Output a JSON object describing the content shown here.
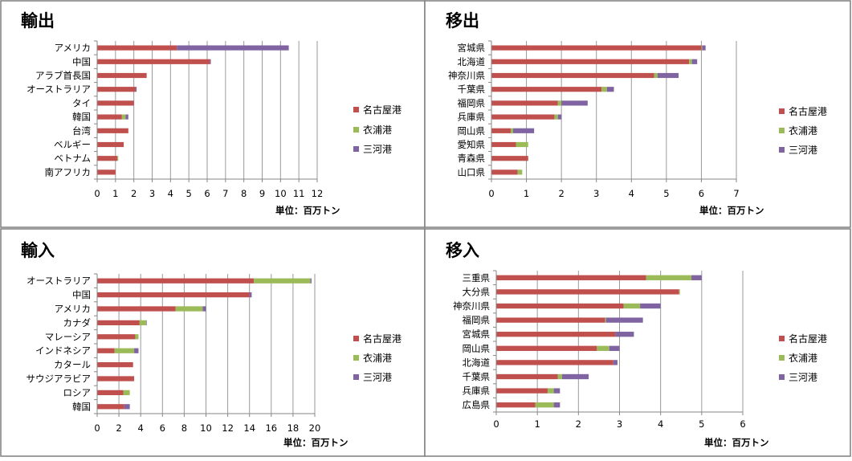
{
  "colors": {
    "nagoya": "#c0504d",
    "kinuura": "#9bbb59",
    "mikawa": "#8064a2"
  },
  "chart_data": [
    {
      "type": "bar",
      "stacked": true,
      "orientation": "horizontal",
      "title": "輸出",
      "unit_label": "単位：百万トン",
      "xlim": [
        0,
        12
      ],
      "xticks": [
        0,
        1,
        2,
        3,
        4,
        5,
        6,
        7,
        8,
        9,
        10,
        11,
        12
      ],
      "categories": [
        "アメリカ",
        "中国",
        "アラブ首長国",
        "オーストラリア",
        "タイ",
        "韓国",
        "台湾",
        "ベルギー",
        "ベトナム",
        "南アフリカ"
      ],
      "series": [
        {
          "name": "名古屋港",
          "values": [
            4.35,
            6.15,
            2.7,
            2.1,
            2.0,
            1.35,
            1.7,
            1.45,
            1.1,
            1.0
          ]
        },
        {
          "name": "衣浦港",
          "values": [
            0,
            0,
            0,
            0,
            0,
            0.2,
            0,
            0,
            0.05,
            0
          ]
        },
        {
          "name": "三河港",
          "values": [
            6.1,
            0.05,
            0,
            0.05,
            0,
            0.15,
            0,
            0,
            0,
            0
          ]
        }
      ]
    },
    {
      "type": "bar",
      "stacked": true,
      "orientation": "horizontal",
      "title": "移出",
      "unit_label": "単位：百万トン",
      "xlim": [
        0,
        7
      ],
      "xticks": [
        0,
        1,
        2,
        3,
        4,
        5,
        6,
        7
      ],
      "categories": [
        "宮城県",
        "北海道",
        "神奈川県",
        "千葉県",
        "福岡県",
        "兵庫県",
        "岡山県",
        "愛知県",
        "青森県",
        "山口県"
      ],
      "series": [
        {
          "name": "名古屋港",
          "values": [
            6.0,
            5.65,
            4.65,
            3.15,
            1.9,
            1.8,
            0.55,
            0.7,
            1.05,
            0.75
          ]
        },
        {
          "name": "衣浦港",
          "values": [
            0.02,
            0.08,
            0.1,
            0.15,
            0.1,
            0.1,
            0.07,
            0.35,
            0,
            0.13
          ]
        },
        {
          "name": "三河港",
          "values": [
            0.1,
            0.15,
            0.6,
            0.2,
            0.75,
            0.1,
            0.6,
            0,
            0,
            0
          ]
        }
      ]
    },
    {
      "type": "bar",
      "stacked": true,
      "orientation": "horizontal",
      "title": "輸入",
      "unit_label": "単位：百万トン",
      "xlim": [
        0,
        20
      ],
      "xticks": [
        0,
        2,
        4,
        6,
        8,
        10,
        12,
        14,
        16,
        18,
        20
      ],
      "categories": [
        "オーストラリア",
        "中国",
        "アメリカ",
        "カナダ",
        "マレーシア",
        "インドネシア",
        "カタール",
        "サウジアラビア",
        "ロシア",
        "韓国"
      ],
      "series": [
        {
          "name": "名古屋港",
          "values": [
            14.4,
            14.0,
            7.2,
            3.9,
            3.5,
            1.6,
            3.3,
            3.4,
            2.4,
            2.5
          ]
        },
        {
          "name": "衣浦港",
          "values": [
            5.2,
            0,
            2.5,
            0.6,
            0.3,
            1.8,
            0,
            0,
            0.6,
            0
          ]
        },
        {
          "name": "三河港",
          "values": [
            0.1,
            0.2,
            0.3,
            0.05,
            0,
            0.4,
            0,
            0,
            0,
            0.5
          ]
        }
      ]
    },
    {
      "type": "bar",
      "stacked": true,
      "orientation": "horizontal",
      "title": "移入",
      "unit_label": "単位：百万トン",
      "xlim": [
        0,
        6
      ],
      "xticks": [
        0,
        1,
        2,
        3,
        4,
        5,
        6
      ],
      "categories": [
        "三重県",
        "大分県",
        "神奈川県",
        "福岡県",
        "宮城県",
        "岡山県",
        "北海道",
        "千葉県",
        "兵庫県",
        "広島県"
      ],
      "series": [
        {
          "name": "名古屋港",
          "values": [
            3.65,
            4.45,
            3.1,
            2.65,
            2.9,
            2.45,
            2.85,
            1.5,
            1.25,
            0.95
          ]
        },
        {
          "name": "衣浦港",
          "values": [
            1.1,
            0.02,
            0.4,
            0.02,
            0,
            0.3,
            0,
            0.1,
            0.15,
            0.45
          ]
        },
        {
          "name": "三河港",
          "values": [
            0.25,
            0,
            0.5,
            0.9,
            0.45,
            0.25,
            0.1,
            0.65,
            0.15,
            0.15
          ]
        }
      ]
    }
  ]
}
